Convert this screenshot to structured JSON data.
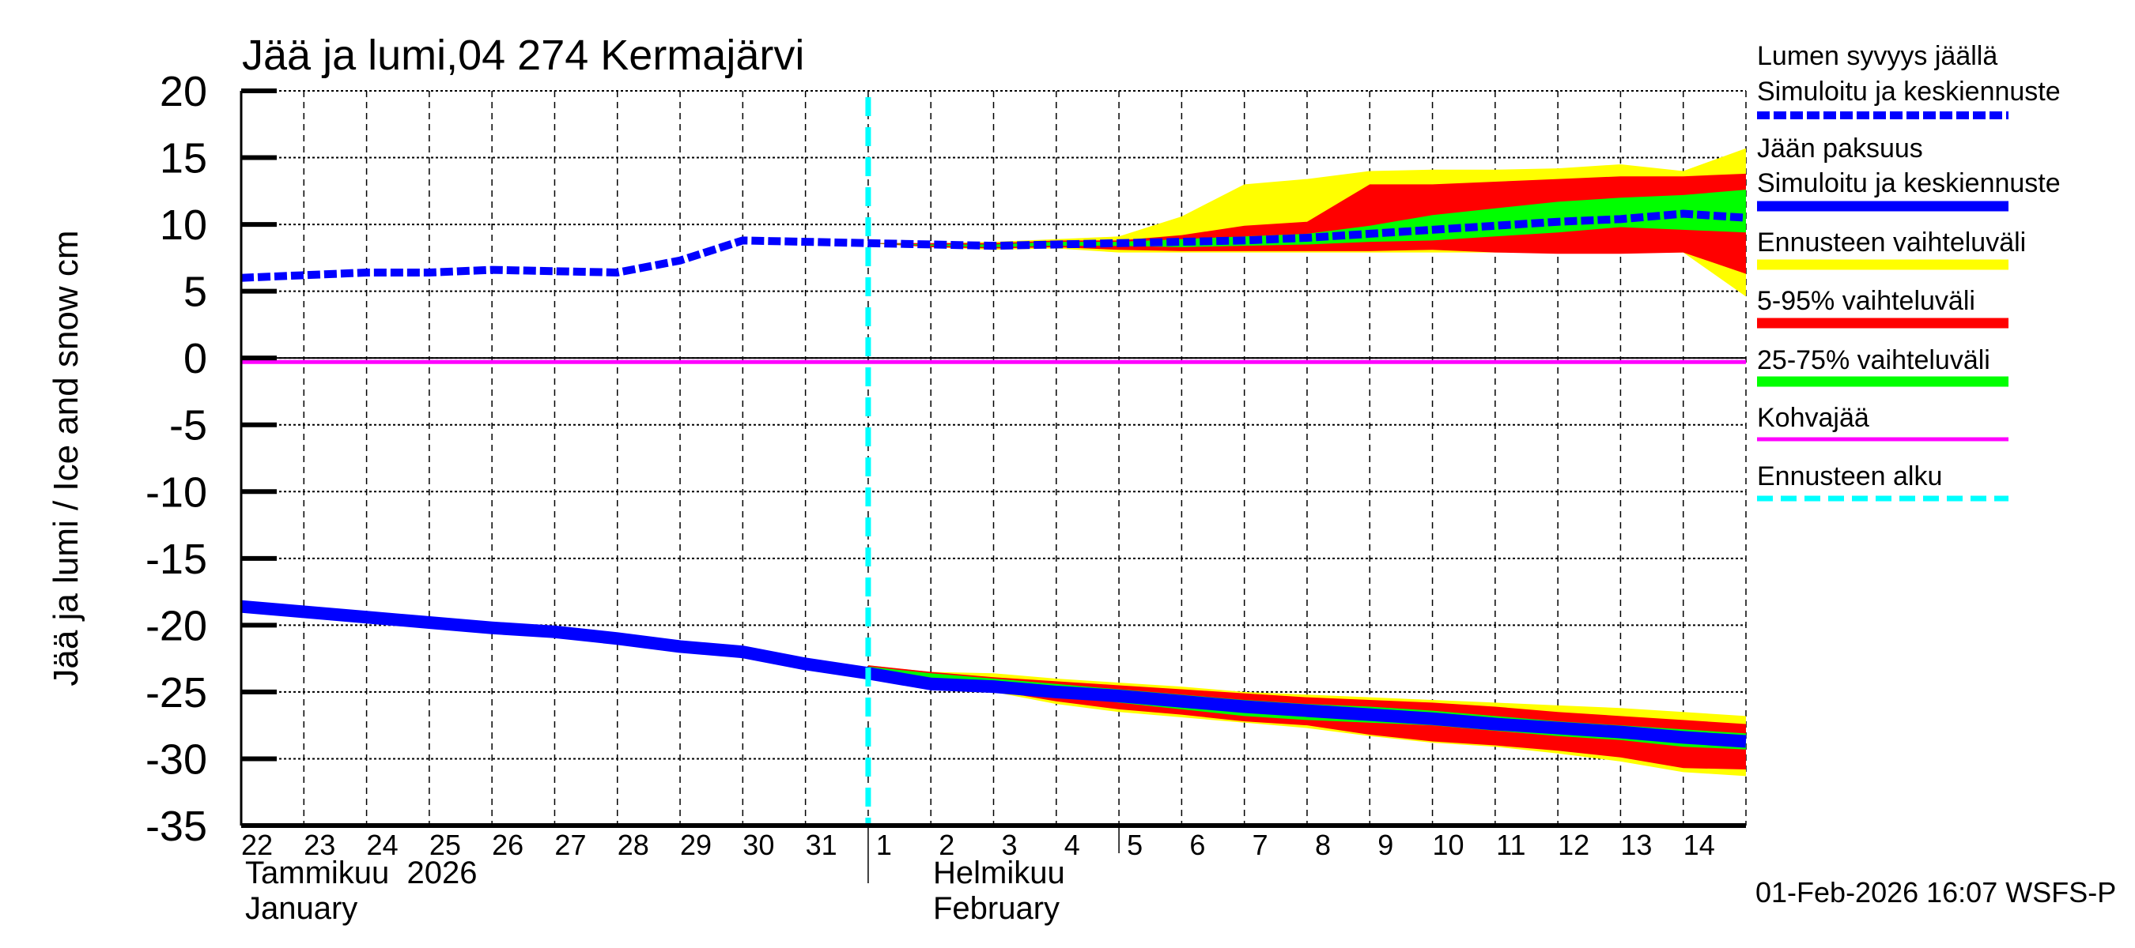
{
  "chart_data": {
    "type": "area",
    "title": "Jää ja lumi,04 274 Kermajärvi",
    "ylabel": "Jää ja lumi / Ice and snow    cm",
    "ylim": [
      -35,
      20
    ],
    "yticks": [
      20,
      15,
      10,
      5,
      0,
      -5,
      -10,
      -15,
      -20,
      -25,
      -30,
      -35
    ],
    "xlim": [
      "2026-01-22",
      "2026-02-15"
    ],
    "xtick_labels": [
      "22",
      "23",
      "24",
      "25",
      "26",
      "27",
      "28",
      "29",
      "30",
      "31",
      "1",
      "2",
      "3",
      "4",
      "5",
      "6",
      "7",
      "8",
      "9",
      "10",
      "11",
      "12",
      "13",
      "14"
    ],
    "month_labels": [
      {
        "fi": "Tammikuu  2026",
        "en": "January"
      },
      {
        "fi": "Helmikuu",
        "en": "February"
      }
    ],
    "grid": true,
    "legend_position": "right",
    "forecast_start": "2026-02-01",
    "history_x": [
      "2026-01-22",
      "2026-01-23",
      "2026-01-24",
      "2026-01-25",
      "2026-01-26",
      "2026-01-27",
      "2026-01-28",
      "2026-01-29",
      "2026-01-30",
      "2026-01-31"
    ],
    "forecast_x": [
      "2026-02-01",
      "2026-02-02",
      "2026-02-03",
      "2026-02-04",
      "2026-02-05",
      "2026-02-06",
      "2026-02-07",
      "2026-02-08",
      "2026-02-09",
      "2026-02-10",
      "2026-02-11",
      "2026-02-12",
      "2026-02-13",
      "2026-02-14",
      "2026-02-15"
    ],
    "snow": {
      "history": [
        6.0,
        6.2,
        6.4,
        6.4,
        6.6,
        6.5,
        6.4,
        7.3,
        8.8,
        8.7
      ],
      "median": [
        8.6,
        8.5,
        8.4,
        8.5,
        8.6,
        8.7,
        8.8,
        9.0,
        9.3,
        9.6,
        9.9,
        10.2,
        10.4,
        10.8,
        10.5
      ],
      "range_upper": [
        8.6,
        8.6,
        8.7,
        8.9,
        9.1,
        10.6,
        13.0,
        13.4,
        14.0,
        14.1,
        14.1,
        14.2,
        14.5,
        14.0,
        15.7
      ],
      "range_lower": [
        8.6,
        8.3,
        8.1,
        8.2,
        7.9,
        7.9,
        7.9,
        7.9,
        7.9,
        7.9,
        7.9,
        7.9,
        7.9,
        7.9,
        4.6
      ],
      "p95": [
        8.6,
        8.6,
        8.6,
        8.8,
        8.8,
        9.2,
        9.9,
        10.2,
        13.0,
        13.0,
        13.2,
        13.4,
        13.6,
        13.6,
        13.8
      ],
      "p5": [
        8.6,
        8.3,
        8.2,
        8.3,
        8.1,
        8.0,
        8.0,
        8.0,
        8.0,
        8.1,
        7.9,
        7.8,
        7.8,
        7.9,
        6.3
      ],
      "p75": [
        8.6,
        8.5,
        8.5,
        8.7,
        8.7,
        8.9,
        9.1,
        9.3,
        9.9,
        10.7,
        11.2,
        11.7,
        12.0,
        12.2,
        12.6
      ],
      "p25": [
        8.6,
        8.4,
        8.3,
        8.4,
        8.4,
        8.3,
        8.4,
        8.5,
        8.7,
        8.8,
        9.1,
        9.4,
        9.8,
        9.6,
        9.4
      ]
    },
    "ice": {
      "history": [
        -18.6,
        -19.0,
        -19.4,
        -19.8,
        -20.2,
        -20.5,
        -21.0,
        -21.6,
        -22.0,
        -22.9
      ],
      "median": [
        -23.6,
        -24.4,
        -24.6,
        -25.0,
        -25.3,
        -25.7,
        -26.1,
        -26.4,
        -26.7,
        -27.0,
        -27.4,
        -27.7,
        -28.0,
        -28.4,
        -28.7
      ],
      "range_upper": [
        -23.0,
        -23.5,
        -23.6,
        -24.0,
        -24.3,
        -24.6,
        -25.0,
        -25.2,
        -25.4,
        -25.6,
        -25.8,
        -26.0,
        -26.2,
        -26.5,
        -26.8
      ],
      "range_lower": [
        -23.6,
        -24.5,
        -25.0,
        -25.9,
        -26.5,
        -26.9,
        -27.3,
        -27.7,
        -28.3,
        -28.8,
        -29.1,
        -29.6,
        -30.2,
        -31.0,
        -31.3
      ],
      "p95": [
        -23.0,
        -23.5,
        -23.9,
        -24.2,
        -24.5,
        -24.8,
        -25.1,
        -25.4,
        -25.6,
        -25.8,
        -26.1,
        -26.5,
        -26.8,
        -27.1,
        -27.4
      ],
      "p5": [
        -23.6,
        -24.5,
        -24.9,
        -25.7,
        -26.3,
        -26.7,
        -27.2,
        -27.5,
        -28.2,
        -28.7,
        -29.0,
        -29.4,
        -29.9,
        -30.7,
        -30.8
      ],
      "p75": [
        -23.1,
        -23.6,
        -24.0,
        -24.4,
        -24.8,
        -25.2,
        -25.6,
        -25.9,
        -26.1,
        -26.4,
        -26.8,
        -27.2,
        -27.5,
        -27.8,
        -28.1
      ],
      "p25": [
        -23.6,
        -24.3,
        -24.5,
        -25.2,
        -25.8,
        -26.3,
        -26.8,
        -27.1,
        -27.3,
        -27.5,
        -27.9,
        -28.3,
        -28.6,
        -29.1,
        -29.3
      ]
    },
    "kohvajaa": -0.3,
    "legend": [
      {
        "label1": "Lumen syvyys jäällä",
        "label2": "Simuloitu ja keskiennuste",
        "color": "#0000ff",
        "style": "dashed"
      },
      {
        "label1": "Jään paksuus",
        "label2": "Simuloitu ja keskiennuste",
        "color": "#0000ff",
        "style": "solid"
      },
      {
        "label1": "Ennusteen vaihteluväli",
        "color": "#ffff00",
        "style": "band"
      },
      {
        "label1": "5-95% vaihteluväli",
        "color": "#ff0000",
        "style": "band"
      },
      {
        "label1": "25-75% vaihteluväli",
        "color": "#00ff00",
        "style": "band"
      },
      {
        "label1": "Kohvajää",
        "color": "#ff00ff",
        "style": "thin"
      },
      {
        "label1": "Ennusteen alku",
        "color": "#00ffff",
        "style": "dashed"
      }
    ]
  },
  "footer": "01-Feb-2026 16:07 WSFS-P"
}
